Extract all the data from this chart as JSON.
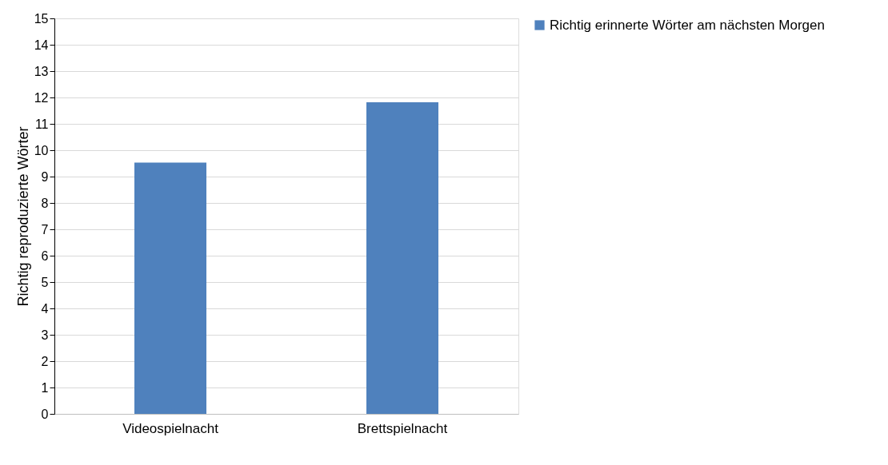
{
  "chart_data": {
    "type": "bar",
    "categories": [
      "Videospielnacht",
      "Brettspielnacht"
    ],
    "series": [
      {
        "name": "Richtig erinnerte Wörter am nächsten Morgen",
        "color": "#4f81bd",
        "values": [
          9.53,
          11.82
        ]
      }
    ],
    "ylabel": "Richtig reproduzierte Wörter",
    "ylim": [
      0,
      15
    ],
    "yticks": [
      0,
      1,
      2,
      3,
      4,
      5,
      6,
      7,
      8,
      9,
      10,
      11,
      12,
      13,
      14,
      15
    ],
    "grid": "y",
    "legend": "right"
  }
}
